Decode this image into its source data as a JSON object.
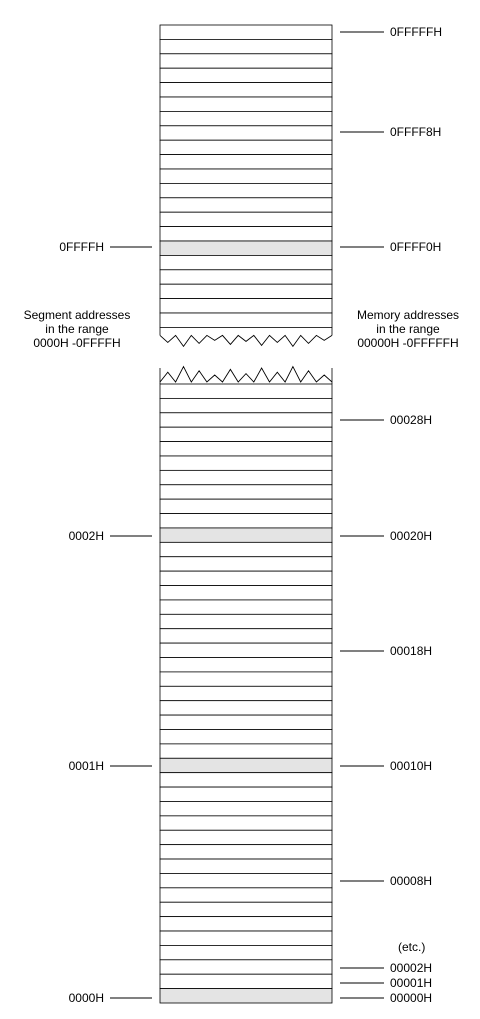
{
  "memory_note": [
    "Memory addresses",
    "in the range",
    "00000H -0FFFFFH"
  ],
  "segment_note": [
    "Segment addresses",
    "in the range",
    "0000H -0FFFFH"
  ],
  "memory_labels": {
    "top": [
      "0FFFFFH",
      "0FFFF8H",
      "0FFFF0H"
    ],
    "bottom": [
      "00028H",
      "00020H",
      "00018H",
      "00010H",
      "00008H",
      "00002H",
      "00001H",
      "00000H"
    ]
  },
  "segment_labels": [
    "0FFFFH",
    "0002H",
    "0001H",
    "0000H"
  ],
  "etc_label": "(etc.)",
  "colors": {
    "line": "#000000",
    "highlight": "#e4e4e4",
    "cell": "#ffffff"
  }
}
